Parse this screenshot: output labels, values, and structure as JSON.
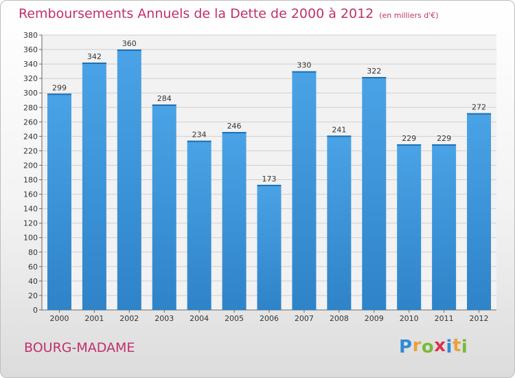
{
  "title": "Remboursements Annuels de la Dette de 2000 à 2012",
  "unit": "(en milliers d'€)",
  "commune": "BOURG-MADAME",
  "logo": {
    "letters": [
      "P",
      "r",
      "o",
      "x",
      "i",
      "t",
      "i"
    ],
    "colors": [
      "#2e8bd6",
      "#e9a23b",
      "#79b93b",
      "#d9334a",
      "#2e8bd6",
      "#e9a23b",
      "#79b93b"
    ]
  },
  "colors": {
    "bar": "#4aa3e6",
    "bar_dark": "#2f83c8",
    "title": "#c0306a"
  },
  "chart_data": {
    "type": "bar",
    "categories": [
      "2000",
      "2001",
      "2002",
      "2003",
      "2004",
      "2005",
      "2006",
      "2007",
      "2008",
      "2009",
      "2010",
      "2011",
      "2012"
    ],
    "values": [
      299,
      342,
      360,
      284,
      234,
      246,
      173,
      330,
      241,
      322,
      229,
      229,
      272
    ],
    "data_labels": [
      "299",
      "342",
      "360",
      "284",
      "234",
      "246",
      "173",
      "330",
      "241",
      "322",
      "229",
      "229",
      "272"
    ],
    "yticks": [
      "0",
      "20",
      "40",
      "60",
      "80",
      "100",
      "120",
      "140",
      "160",
      "180",
      "200",
      "220",
      "240",
      "260",
      "280",
      "300",
      "320",
      "340",
      "360",
      "380"
    ],
    "ylim": [
      0,
      380
    ],
    "grid": true
  }
}
